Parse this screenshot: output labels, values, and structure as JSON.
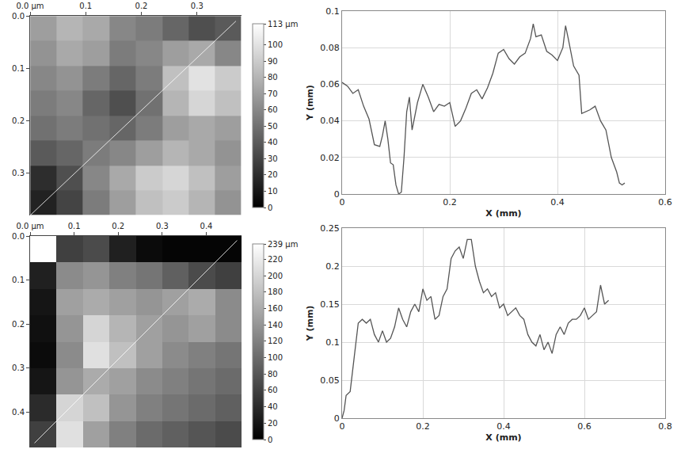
{
  "chart_data": [
    {
      "type": "heatmap",
      "x": [
        0.024,
        0.071,
        0.119,
        0.166,
        0.214,
        0.261,
        0.309,
        0.356
      ],
      "y": [
        0.024,
        0.071,
        0.119,
        0.166,
        0.214,
        0.261,
        0.309,
        0.356
      ],
      "z": [
        [
          70,
          80,
          75,
          60,
          55,
          45,
          35,
          40
        ],
        [
          65,
          75,
          70,
          55,
          60,
          70,
          75,
          60
        ],
        [
          60,
          65,
          55,
          45,
          55,
          85,
          100,
          90
        ],
        [
          55,
          60,
          45,
          35,
          50,
          80,
          95,
          85
        ],
        [
          50,
          55,
          50,
          45,
          55,
          70,
          75,
          70
        ],
        [
          40,
          45,
          55,
          60,
          70,
          80,
          75,
          65
        ],
        [
          20,
          35,
          60,
          75,
          90,
          95,
          85,
          70
        ],
        [
          15,
          30,
          55,
          70,
          85,
          90,
          80,
          65
        ]
      ],
      "xlim": [
        0,
        0.38
      ],
      "ylim": [
        0,
        0.38
      ],
      "xticks": [
        {
          "value": 0,
          "label": "0.0 µm"
        },
        0.1,
        0.2,
        0.3
      ],
      "yticks": [
        {
          "value": 0,
          "label": "0.0"
        },
        0.1,
        0.2,
        0.3
      ],
      "zlim": [
        0,
        113
      ],
      "zticks": [
        0,
        10,
        20,
        30,
        40,
        50,
        60,
        70,
        80,
        90,
        100,
        {
          "value": 113,
          "label": "113 µm"
        }
      ],
      "profile_line": {
        "x": [
          0,
          0.37
        ],
        "y": [
          0.38,
          0.01
        ]
      }
    },
    {
      "type": "line",
      "x": [
        0,
        0.01,
        0.02,
        0.03,
        0.04,
        0.05,
        0.06,
        0.07,
        0.075,
        0.08,
        0.085,
        0.09,
        0.095,
        0.1,
        0.105,
        0.11,
        0.115,
        0.12,
        0.125,
        0.13,
        0.14,
        0.15,
        0.16,
        0.17,
        0.18,
        0.19,
        0.2,
        0.21,
        0.22,
        0.23,
        0.24,
        0.25,
        0.26,
        0.27,
        0.28,
        0.29,
        0.3,
        0.31,
        0.32,
        0.33,
        0.34,
        0.35,
        0.355,
        0.36,
        0.37,
        0.38,
        0.39,
        0.4,
        0.41,
        0.415,
        0.42,
        0.43,
        0.44,
        0.445,
        0.46,
        0.47,
        0.48,
        0.49,
        0.5,
        0.51,
        0.515,
        0.52,
        0.525
      ],
      "values": [
        0.061,
        0.059,
        0.055,
        0.057,
        0.048,
        0.041,
        0.027,
        0.026,
        0.032,
        0.04,
        0.03,
        0.017,
        0.016,
        0.005,
        0,
        0.001,
        0.02,
        0.045,
        0.053,
        0.035,
        0.05,
        0.06,
        0.053,
        0.045,
        0.049,
        0.048,
        0.05,
        0.037,
        0.04,
        0.047,
        0.055,
        0.057,
        0.052,
        0.058,
        0.066,
        0.077,
        0.079,
        0.074,
        0.071,
        0.075,
        0.077,
        0.085,
        0.093,
        0.086,
        0.087,
        0.078,
        0.076,
        0.073,
        0.08,
        0.092,
        0.085,
        0.07,
        0.065,
        0.044,
        0.046,
        0.048,
        0.04,
        0.035,
        0.02,
        0.012,
        0.006,
        0.005,
        0.006
      ],
      "color": "#555555",
      "xlabel": "X (mm)",
      "ylabel": "Y (mm)",
      "xlim": [
        0,
        0.6
      ],
      "ylim": [
        0,
        0.1
      ],
      "xticks": [
        0,
        0.2,
        0.4,
        0.6
      ],
      "yticks": [
        0,
        0.02,
        0.04,
        0.06,
        0.08,
        0.1
      ],
      "grid": true
    },
    {
      "type": "heatmap",
      "x": [
        0.03,
        0.09,
        0.15,
        0.21,
        0.27,
        0.33,
        0.39,
        0.45
      ],
      "y": [
        0.03,
        0.09,
        0.15,
        0.21,
        0.27,
        0.33,
        0.39,
        0.45
      ],
      "z": [
        [
          239,
          60,
          70,
          30,
          10,
          5,
          5,
          5
        ],
        [
          30,
          130,
          140,
          120,
          110,
          90,
          70,
          60
        ],
        [
          20,
          150,
          160,
          150,
          140,
          150,
          160,
          130
        ],
        [
          15,
          140,
          200,
          170,
          150,
          140,
          150,
          130
        ],
        [
          10,
          130,
          210,
          180,
          150,
          130,
          120,
          110
        ],
        [
          20,
          140,
          160,
          150,
          130,
          120,
          110,
          100
        ],
        [
          40,
          200,
          180,
          140,
          120,
          110,
          100,
          90
        ],
        [
          60,
          210,
          150,
          120,
          100,
          90,
          80,
          70
        ]
      ],
      "xlim": [
        0,
        0.48
      ],
      "ylim": [
        0,
        0.48
      ],
      "xticks": [
        {
          "value": 0,
          "label": "0.0 µm"
        },
        0.1,
        0.2,
        0.3,
        0.4
      ],
      "yticks": [
        {
          "value": 0,
          "label": "0.0"
        },
        0.1,
        0.2,
        0.3,
        0.4
      ],
      "zlim": [
        0,
        239
      ],
      "zticks": [
        0,
        20,
        40,
        60,
        80,
        100,
        120,
        140,
        160,
        180,
        200,
        220,
        {
          "value": 239,
          "label": "239 µm"
        }
      ],
      "profile_line": {
        "x": [
          0.01,
          0.47
        ],
        "y": [
          0.47,
          0.01
        ]
      }
    },
    {
      "type": "line",
      "x": [
        0,
        0.005,
        0.01,
        0.02,
        0.03,
        0.04,
        0.05,
        0.06,
        0.07,
        0.08,
        0.09,
        0.1,
        0.11,
        0.12,
        0.13,
        0.14,
        0.15,
        0.16,
        0.17,
        0.18,
        0.19,
        0.2,
        0.21,
        0.22,
        0.23,
        0.24,
        0.25,
        0.26,
        0.27,
        0.28,
        0.29,
        0.3,
        0.31,
        0.32,
        0.33,
        0.34,
        0.35,
        0.36,
        0.37,
        0.38,
        0.39,
        0.4,
        0.41,
        0.42,
        0.43,
        0.44,
        0.45,
        0.46,
        0.47,
        0.48,
        0.49,
        0.5,
        0.51,
        0.52,
        0.53,
        0.54,
        0.55,
        0.56,
        0.57,
        0.58,
        0.59,
        0.6,
        0.61,
        0.62,
        0.63,
        0.64,
        0.65,
        0.66
      ],
      "values": [
        0,
        0.01,
        0.03,
        0.035,
        0.08,
        0.125,
        0.13,
        0.125,
        0.13,
        0.11,
        0.1,
        0.115,
        0.1,
        0.105,
        0.12,
        0.145,
        0.13,
        0.12,
        0.14,
        0.15,
        0.14,
        0.17,
        0.155,
        0.16,
        0.13,
        0.135,
        0.16,
        0.17,
        0.21,
        0.22,
        0.225,
        0.21,
        0.235,
        0.235,
        0.2,
        0.18,
        0.165,
        0.17,
        0.16,
        0.165,
        0.145,
        0.15,
        0.135,
        0.14,
        0.145,
        0.135,
        0.13,
        0.11,
        0.1,
        0.095,
        0.11,
        0.09,
        0.1,
        0.085,
        0.11,
        0.12,
        0.11,
        0.125,
        0.13,
        0.13,
        0.135,
        0.145,
        0.13,
        0.135,
        0.14,
        0.175,
        0.15,
        0.155
      ],
      "color": "#555555",
      "xlabel": "X (mm)",
      "ylabel": "Y (mm)",
      "xlim": [
        0,
        0.8
      ],
      "ylim": [
        0,
        0.25
      ],
      "xticks": [
        0,
        0.2,
        0.4,
        0.6,
        0.8
      ],
      "yticks": [
        0,
        0.05,
        0.1,
        0.15,
        0.2,
        0.25
      ],
      "grid": true
    }
  ]
}
